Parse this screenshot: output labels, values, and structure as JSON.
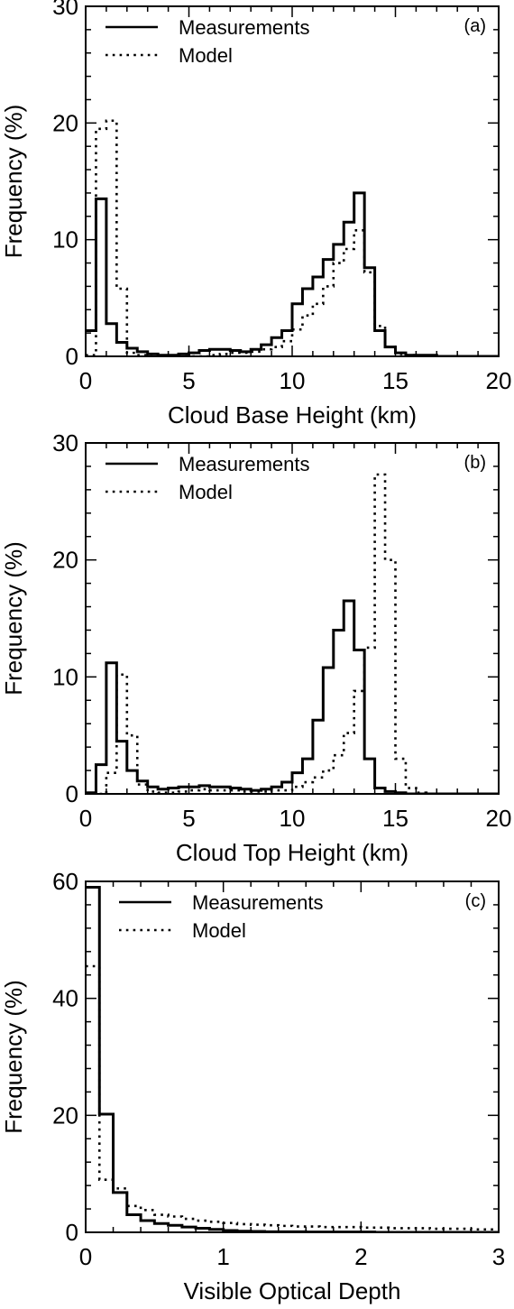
{
  "chart_data": [
    {
      "type": "line",
      "panel_label": "(a)",
      "xlabel": "Cloud Base Height (km)",
      "ylabel": "Frequency (%)",
      "xlim": [
        0,
        20
      ],
      "ylim": [
        0,
        30
      ],
      "xticks": [
        0,
        5,
        10,
        15,
        20
      ],
      "yticks": [
        0,
        10,
        20,
        30
      ],
      "bin_width": 0.5,
      "legend_position": "top-left",
      "series": [
        {
          "name": "Measurements",
          "style": "solid",
          "values": [
            2.2,
            13.5,
            2.8,
            1.2,
            0.7,
            0.4,
            0.2,
            0.1,
            0.1,
            0.2,
            0.3,
            0.5,
            0.6,
            0.6,
            0.5,
            0.4,
            0.6,
            1.0,
            1.6,
            2.2,
            4.5,
            5.8,
            6.8,
            8.3,
            9.6,
            11.5,
            14.0,
            7.6,
            2.2,
            0.8,
            0.3,
            0.1,
            0.1,
            0.1,
            0.0,
            0.0,
            0.0,
            0.0,
            0.0,
            0.0
          ]
        },
        {
          "name": "Model",
          "style": "dotted",
          "values": [
            0.1,
            19.5,
            20.2,
            5.8,
            0.3,
            0.1,
            0.0,
            0.0,
            0.0,
            0.0,
            0.0,
            0.0,
            0.1,
            0.2,
            0.3,
            0.3,
            0.4,
            0.6,
            0.8,
            1.3,
            2.3,
            3.5,
            4.5,
            6.0,
            8.0,
            9.2,
            10.8,
            7.2,
            2.6,
            0.8,
            0.2,
            0.1,
            0.0,
            0.0,
            0.0,
            0.0,
            0.0,
            0.0,
            0.0,
            0.0
          ]
        }
      ]
    },
    {
      "type": "line",
      "panel_label": "(b)",
      "xlabel": "Cloud Top Height (km)",
      "ylabel": "Frequency (%)",
      "xlim": [
        0,
        20
      ],
      "ylim": [
        0,
        30
      ],
      "xticks": [
        0,
        5,
        10,
        15,
        20
      ],
      "yticks": [
        0,
        10,
        20,
        30
      ],
      "bin_width": 0.5,
      "legend_position": "top-left",
      "series": [
        {
          "name": "Measurements",
          "style": "solid",
          "values": [
            0.1,
            2.5,
            11.2,
            4.5,
            2.0,
            1.1,
            0.6,
            0.4,
            0.5,
            0.6,
            0.6,
            0.7,
            0.6,
            0.6,
            0.5,
            0.4,
            0.3,
            0.4,
            0.6,
            1.0,
            1.8,
            3.0,
            6.3,
            10.8,
            14.0,
            16.5,
            12.3,
            3.0,
            0.5,
            0.2,
            0.1,
            0.0,
            0.0,
            0.0,
            0.0,
            0.0,
            0.0,
            0.0,
            0.0,
            0.0
          ]
        },
        {
          "name": "Model",
          "style": "dotted",
          "values": [
            0.0,
            0.0,
            1.8,
            10.2,
            5.0,
            0.8,
            0.2,
            0.1,
            0.1,
            0.2,
            0.3,
            0.4,
            0.3,
            0.3,
            0.3,
            0.2,
            0.2,
            0.2,
            0.3,
            0.3,
            0.6,
            1.0,
            1.4,
            2.0,
            3.3,
            5.2,
            8.8,
            12.5,
            27.3,
            20.0,
            3.0,
            0.5,
            0.1,
            0.0,
            0.0,
            0.0,
            0.0,
            0.0,
            0.0,
            0.0
          ]
        }
      ]
    },
    {
      "type": "line",
      "panel_label": "(c)",
      "xlabel": "Visible Optical Depth",
      "ylabel": "Frequency (%)",
      "xlim": [
        0,
        3
      ],
      "ylim": [
        0,
        60
      ],
      "xticks": [
        0,
        1,
        2,
        3
      ],
      "yticks": [
        0,
        20,
        40,
        60
      ],
      "bin_width": 0.1,
      "legend_position": "top-left",
      "series": [
        {
          "name": "Measurements",
          "style": "solid",
          "values": [
            59.0,
            20.2,
            6.8,
            3.0,
            2.0,
            1.5,
            1.2,
            0.9,
            0.7,
            0.5,
            0.3,
            0.2,
            0.15,
            0.1,
            0.1,
            0.1,
            0.05,
            0.05,
            0.05,
            0.05,
            0.05,
            0.0,
            0.0,
            0.0,
            0.0,
            0.0,
            0.0,
            0.0,
            0.0,
            0.0
          ]
        },
        {
          "name": "Model",
          "style": "dotted",
          "values": [
            45.5,
            9.0,
            7.5,
            4.5,
            3.8,
            3.0,
            2.7,
            2.3,
            2.0,
            1.8,
            1.6,
            1.4,
            1.3,
            1.2,
            1.1,
            1.0,
            1.0,
            0.9,
            0.9,
            0.9,
            0.8,
            0.8,
            0.7,
            0.7,
            0.7,
            0.6,
            0.6,
            0.6,
            0.5,
            0.5
          ]
        }
      ]
    }
  ]
}
